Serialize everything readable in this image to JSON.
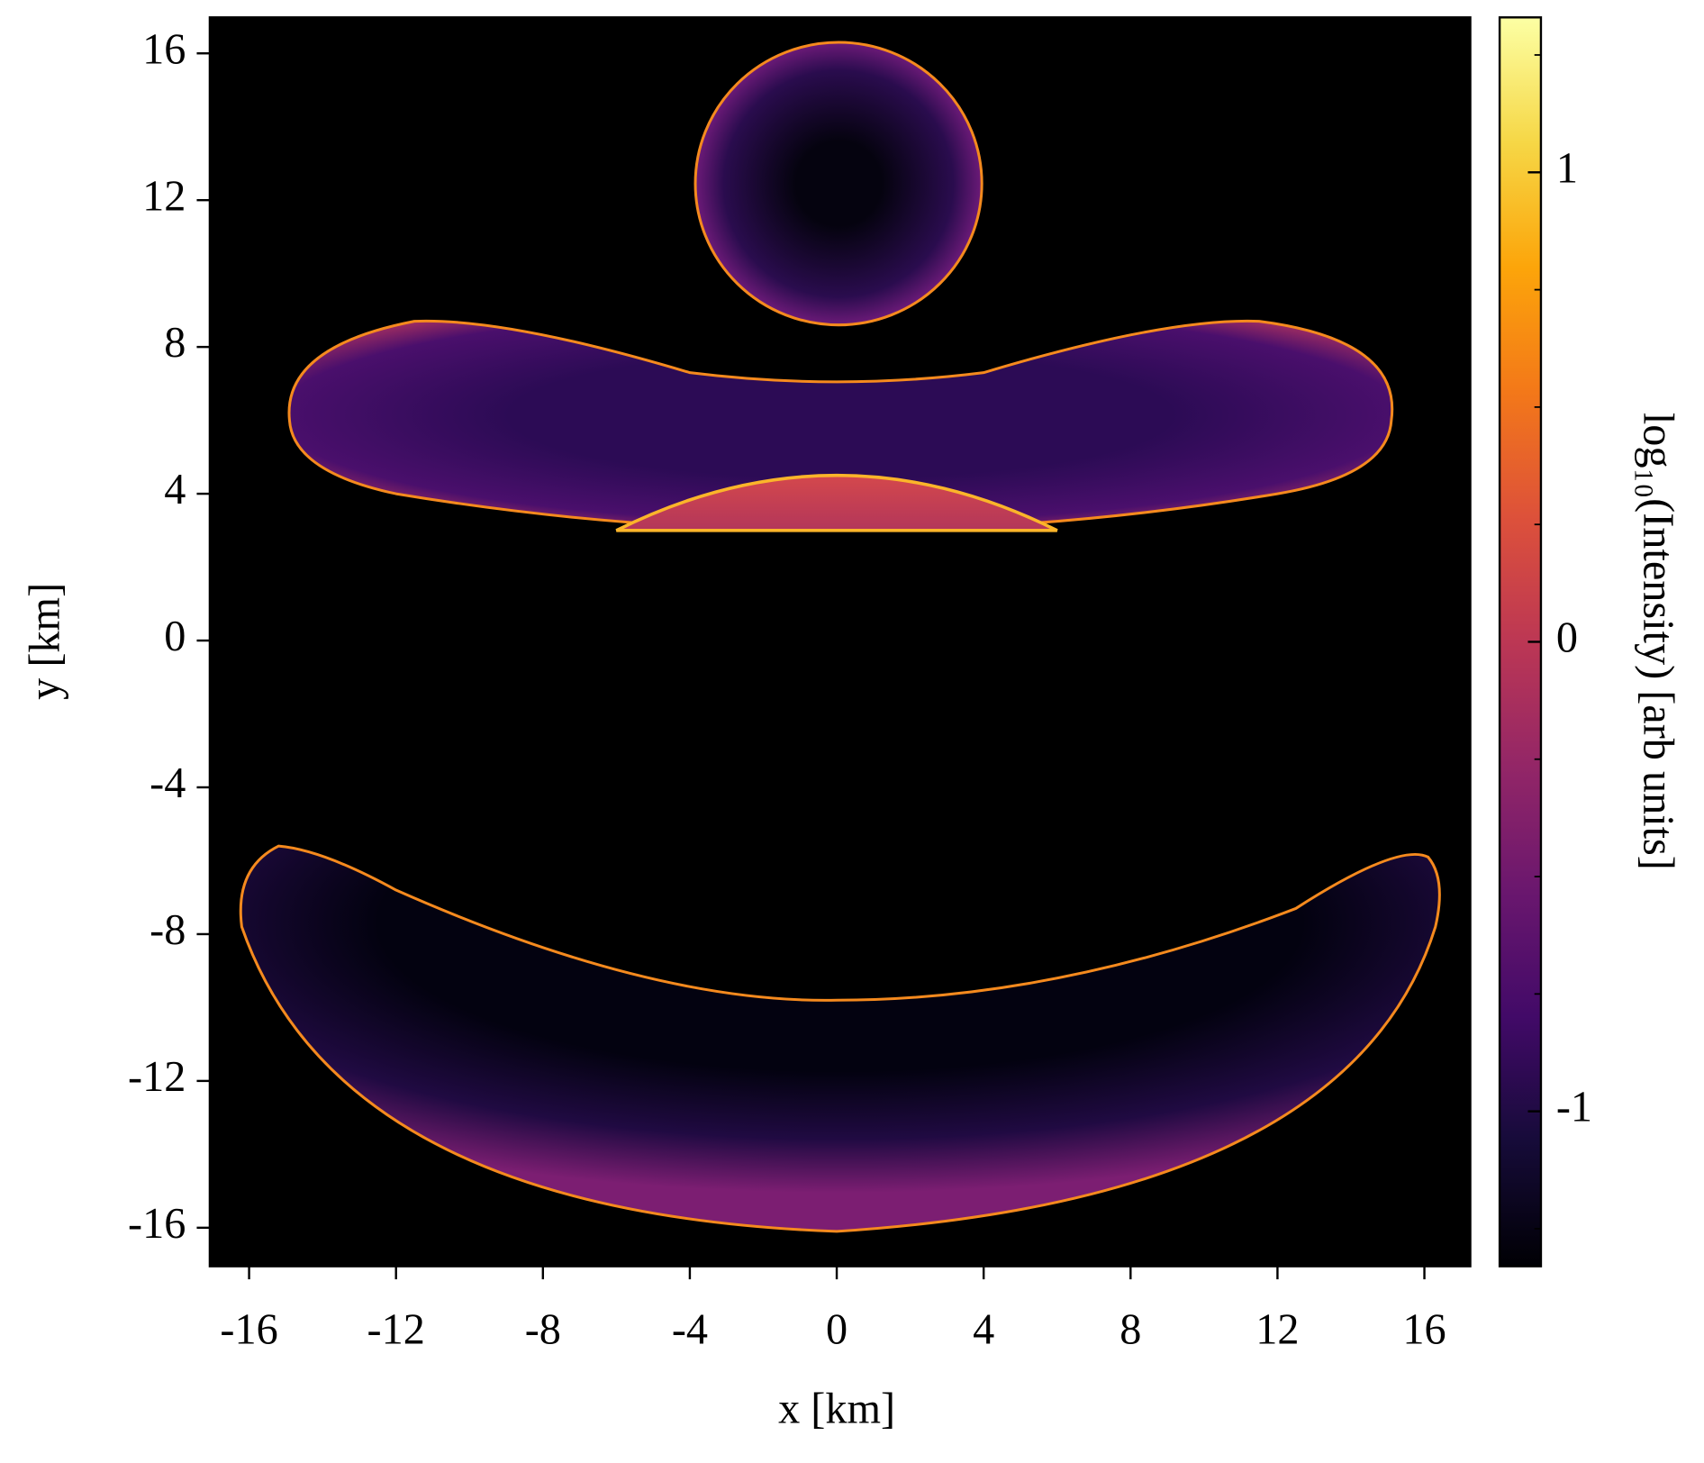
{
  "chart_data": {
    "type": "image",
    "xlabel": "x   [km]",
    "ylabel": "y   [km]",
    "xlim": [
      -17.07,
      17.25
    ],
    "ylim": [
      -17.05,
      16.98
    ],
    "xticks": [
      -16,
      -12,
      -8,
      -4,
      0,
      4,
      8,
      12,
      16
    ],
    "yticks": [
      -16,
      -12,
      -8,
      -4,
      0,
      4,
      8,
      12,
      16
    ],
    "colormap": "inferno",
    "colorbar": {
      "label": "log₁₀(Intensity)   [arb units]",
      "lim": [
        -1.33,
        1.33
      ],
      "ticks": [
        -1,
        0,
        1
      ],
      "minor_ticks": [
        -1.25,
        -0.75,
        -0.5,
        -0.25,
        0.25,
        0.5,
        0.75,
        1.25
      ]
    }
  }
}
